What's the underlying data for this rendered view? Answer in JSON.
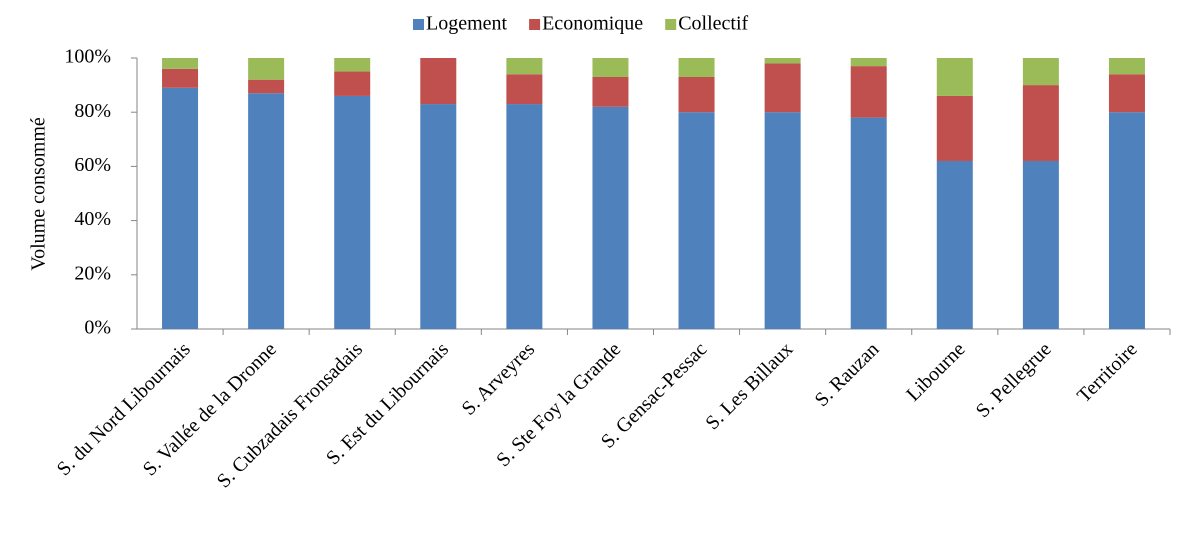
{
  "chart_data": {
    "type": "stacked_bar",
    "y_axis_label": "Volume consommé",
    "categories": [
      "S. du Nord Libournais",
      "S. Vallée de la Dronne",
      "S. Cubzadais Fronsadais",
      "S. Est du Libournais",
      "S. Arveyres",
      "S. Ste Foy la Grande",
      "S. Gensac-Pessac",
      "S. Les Billaux",
      "S. Rauzan",
      "Libourne",
      "S. Pellegrue",
      "Territoire"
    ],
    "series": [
      {
        "name": "Logement",
        "color": "#4f81bd",
        "values": [
          89,
          87,
          86,
          83,
          83,
          82,
          80,
          80,
          78,
          62,
          62,
          80
        ]
      },
      {
        "name": "Economique",
        "color": "#c0504d",
        "values": [
          7,
          5,
          9,
          17,
          11,
          11,
          13,
          18,
          19,
          24,
          28,
          14
        ]
      },
      {
        "name": "Collectif",
        "color": "#9bbb59",
        "values": [
          4,
          8,
          5,
          0,
          6,
          7,
          7,
          2,
          3,
          14,
          10,
          6
        ]
      }
    ],
    "ylim": [
      0,
      100
    ],
    "yticks": [
      {
        "value": 0,
        "label": "0%"
      },
      {
        "value": 20,
        "label": "20%"
      },
      {
        "value": 40,
        "label": "40%"
      },
      {
        "value": 60,
        "label": "60%"
      },
      {
        "value": 80,
        "label": "80%"
      },
      {
        "value": 100,
        "label": "100%"
      }
    ],
    "legend": "top"
  }
}
